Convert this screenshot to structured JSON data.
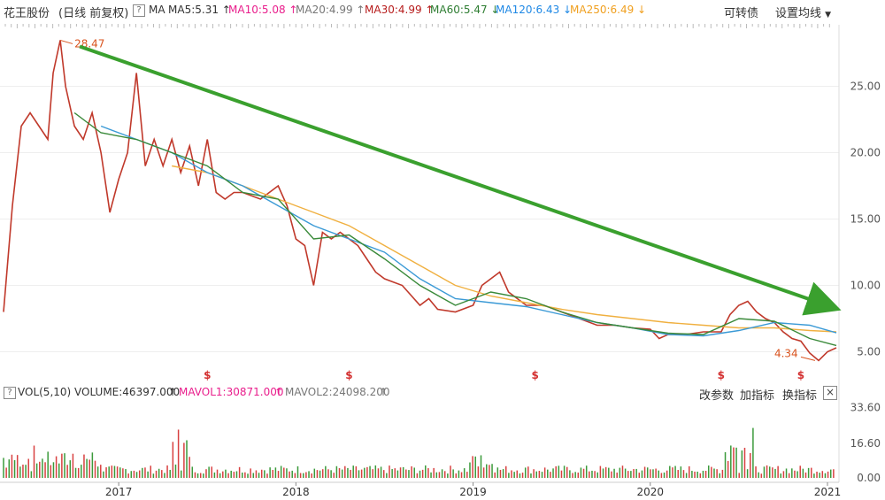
{
  "header": {
    "stock_name": "花王股份",
    "mode": "(日线 前复权)",
    "ma_label": "MA",
    "ma_items": [
      {
        "label": "MA5:5.31",
        "arrow": "↑",
        "color": "#333333"
      },
      {
        "label": "MA10:5.08",
        "arrow": "↑",
        "color": "#e91e8c"
      },
      {
        "label": "MA20:4.99",
        "arrow": "↑",
        "color": "#777777"
      },
      {
        "label": "MA30:4.99",
        "arrow": "↑",
        "color": "#b71c1c"
      },
      {
        "label": "MA60:5.47",
        "arrow": "↓",
        "color": "#2e7d32"
      },
      {
        "label": "MA120:6.43",
        "arrow": "↓",
        "color": "#1e88e5"
      },
      {
        "label": "MA250:6.49",
        "arrow": "↓",
        "color": "#f0a020"
      }
    ],
    "convertible_label": "可转债",
    "settings_label": "设置均线",
    "help_icon": "question-icon"
  },
  "volume_header": {
    "vol_label": "VOL(5,10)",
    "volume_label": "VOLUME:46397.000",
    "mavol1_label": "MAVOL1:30871.000",
    "mavol2_label": "MAVOL2:24098.200",
    "change_params": "改参数",
    "add_indicator": "加指标",
    "switch_indicator": "换指标",
    "close_icon": "close-icon"
  },
  "chart_data": {
    "type": "line",
    "price_axis": {
      "ticks": [
        "25.00",
        "20.00",
        "15.00",
        "10.00",
        "5.00"
      ],
      "ylim": [
        3.5,
        29.5
      ]
    },
    "volume_axis": {
      "ticks": [
        "33.60",
        "16.60",
        "0.00"
      ]
    },
    "x_ticks": [
      "2017",
      "2018",
      "2019",
      "2020",
      "2021"
    ],
    "high_label": "28.47",
    "low_label": "4.34",
    "marker_label": "$",
    "marker_dates": [
      "2017.5",
      "2018.3",
      "2019.35",
      "2020.4",
      "2020.85"
    ],
    "trend_color": "#3aa02e",
    "series": [
      {
        "name": "price",
        "x": [
          2016.35,
          2016.4,
          2016.45,
          2016.5,
          2016.55,
          2016.6,
          2016.63,
          2016.67,
          2016.7,
          2016.75,
          2016.8,
          2016.85,
          2016.9,
          2016.95,
          2017.0,
          2017.05,
          2017.1,
          2017.15,
          2017.2,
          2017.25,
          2017.3,
          2017.35,
          2017.4,
          2017.45,
          2017.5,
          2017.55,
          2017.6,
          2017.65,
          2017.7,
          2017.8,
          2017.9,
          2017.95,
          2018.0,
          2018.05,
          2018.1,
          2018.15,
          2018.2,
          2018.25,
          2018.3,
          2018.35,
          2018.4,
          2018.45,
          2018.5,
          2018.6,
          2018.7,
          2018.75,
          2018.8,
          2018.9,
          2019.0,
          2019.05,
          2019.1,
          2019.15,
          2019.2,
          2019.25,
          2019.3,
          2019.4,
          2019.5,
          2019.6,
          2019.7,
          2019.8,
          2019.9,
          2020.0,
          2020.05,
          2020.1,
          2020.2,
          2020.3,
          2020.4,
          2020.45,
          2020.5,
          2020.55,
          2020.6,
          2020.65,
          2020.7,
          2020.75,
          2020.8,
          2020.85,
          2020.9,
          2020.95,
          2021.0,
          2021.05
        ],
        "values": [
          8,
          16,
          22,
          23,
          22,
          21,
          26,
          28.47,
          25,
          22,
          21,
          23,
          20,
          15.5,
          18,
          20,
          26,
          19,
          21,
          19,
          21,
          18.5,
          20.5,
          17.5,
          21,
          17,
          16.5,
          17,
          17,
          16.5,
          17.5,
          16,
          13.5,
          13,
          10,
          14,
          13.5,
          14,
          13.5,
          13,
          12,
          11,
          10.5,
          10,
          8.5,
          9,
          8.2,
          8,
          8.5,
          10,
          10.5,
          11,
          9.5,
          9,
          8.5,
          8.5,
          8,
          7.5,
          7,
          7,
          6.8,
          6.7,
          6,
          6.3,
          6.3,
          6.5,
          6.5,
          7.8,
          8.5,
          8.8,
          8,
          7.5,
          7.2,
          6.5,
          6,
          5.8,
          4.9,
          4.34,
          5,
          5.3
        ]
      },
      {
        "name": "MA250",
        "x": [
          2017.3,
          2017.5,
          2017.7,
          2017.9,
          2018.1,
          2018.3,
          2018.5,
          2018.7,
          2018.9,
          2019.1,
          2019.3,
          2019.5,
          2019.7,
          2019.9,
          2020.1,
          2020.3,
          2020.5,
          2020.7,
          2020.9,
          2021.05
        ],
        "values": [
          19,
          18.5,
          17.5,
          16.5,
          15.5,
          14.5,
          13,
          11.5,
          10,
          9.2,
          8.7,
          8.2,
          7.8,
          7.5,
          7.2,
          7.0,
          6.8,
          6.8,
          6.6,
          6.5
        ]
      },
      {
        "name": "MA120",
        "x": [
          2016.9,
          2017.1,
          2017.3,
          2017.5,
          2017.7,
          2017.9,
          2018.1,
          2018.3,
          2018.5,
          2018.7,
          2018.9,
          2019.1,
          2019.3,
          2019.5,
          2019.7,
          2019.9,
          2020.1,
          2020.3,
          2020.5,
          2020.7,
          2020.9,
          2021.05
        ],
        "values": [
          22,
          21,
          20,
          18.5,
          17.5,
          16,
          14.5,
          13.5,
          12.5,
          10.5,
          9,
          8.7,
          8.4,
          7.8,
          7.2,
          6.8,
          6.3,
          6.2,
          6.6,
          7.2,
          7.0,
          6.43
        ]
      },
      {
        "name": "MA60",
        "x": [
          2016.75,
          2016.9,
          2017.1,
          2017.3,
          2017.5,
          2017.7,
          2017.9,
          2018.1,
          2018.3,
          2018.5,
          2018.7,
          2018.9,
          2019.1,
          2019.3,
          2019.5,
          2019.7,
          2019.9,
          2020.1,
          2020.3,
          2020.5,
          2020.7,
          2020.9,
          2021.05
        ],
        "values": [
          23,
          21.5,
          21,
          20,
          19,
          17,
          16.5,
          13.5,
          13.8,
          12,
          10,
          8.5,
          9.5,
          9,
          8,
          7.2,
          6.8,
          6.4,
          6.3,
          7.5,
          7.3,
          6.0,
          5.47
        ]
      }
    ],
    "volume": {
      "ylim": [
        0,
        36
      ]
    }
  }
}
